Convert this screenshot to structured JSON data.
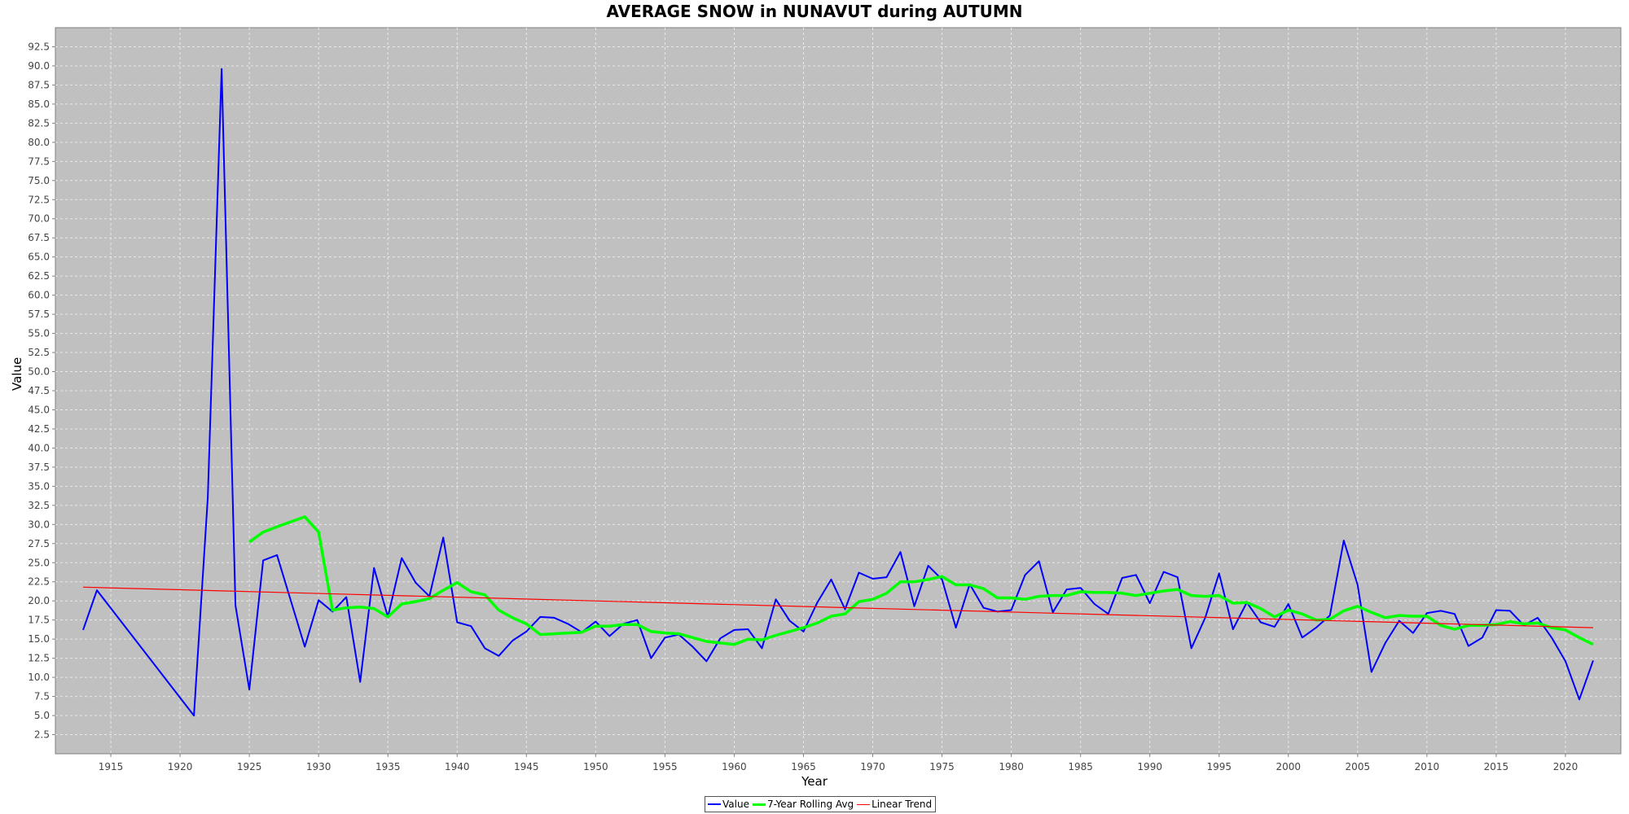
{
  "chart_data": {
    "type": "line",
    "title": "AVERAGE SNOW in NUNAVUT during AUTUMN",
    "xlabel": "Year",
    "ylabel": "Value",
    "xlim": [
      1911,
      2024
    ],
    "ylim": [
      0,
      95
    ],
    "xticks": [
      1915,
      1920,
      1925,
      1930,
      1935,
      1940,
      1945,
      1950,
      1955,
      1960,
      1965,
      1970,
      1975,
      1980,
      1985,
      1990,
      1995,
      2000,
      2005,
      2010,
      2015,
      2020
    ],
    "yticks": [
      2.5,
      5.0,
      7.5,
      10.0,
      12.5,
      15.0,
      17.5,
      20.0,
      22.5,
      25.0,
      27.5,
      30.0,
      32.5,
      35.0,
      37.5,
      40.0,
      42.5,
      45.0,
      47.5,
      50.0,
      52.5,
      55.0,
      57.5,
      60.0,
      62.5,
      65.0,
      67.5,
      70.0,
      72.5,
      75.0,
      77.5,
      80.0,
      82.5,
      85.0,
      87.5,
      90.0,
      92.5
    ],
    "grid": true,
    "legend_position": "bottom-center",
    "background_color": "#c0c0c0",
    "series": [
      {
        "name": "Value",
        "color": "#0000ff",
        "x": [
          1913,
          1914,
          1921,
          1922,
          1923,
          1924,
          1925,
          1926,
          1927,
          1929,
          1930,
          1931,
          1932,
          1933,
          1934,
          1935,
          1936,
          1937,
          1938,
          1939,
          1940,
          1941,
          1942,
          1943,
          1944,
          1945,
          1946,
          1947,
          1948,
          1949,
          1950,
          1951,
          1952,
          1953,
          1954,
          1955,
          1956,
          1957,
          1958,
          1959,
          1960,
          1961,
          1962,
          1963,
          1964,
          1965,
          1966,
          1967,
          1968,
          1969,
          1970,
          1971,
          1972,
          1973,
          1974,
          1975,
          1976,
          1977,
          1978,
          1979,
          1980,
          1981,
          1982,
          1983,
          1984,
          1985,
          1986,
          1987,
          1988,
          1989,
          1990,
          1991,
          1992,
          1993,
          1994,
          1995,
          1996,
          1997,
          1998,
          1999,
          2000,
          2001,
          2002,
          2003,
          2004,
          2005,
          2006,
          2007,
          2008,
          2009,
          2010,
          2011,
          2012,
          2013,
          2014,
          2015,
          2016,
          2017,
          2018,
          2019,
          2020,
          2021,
          2022
        ],
        "y": [
          16.2,
          21.4,
          5.0,
          33.5,
          89.6,
          19.4,
          8.4,
          25.3,
          26.0,
          14.0,
          20.1,
          18.6,
          20.5,
          9.4,
          24.3,
          17.9,
          25.6,
          22.4,
          20.6,
          28.3,
          17.2,
          16.7,
          13.8,
          12.8,
          14.8,
          16.0,
          17.9,
          17.8,
          17.0,
          15.9,
          17.3,
          15.4,
          17.0,
          17.5,
          12.5,
          15.2,
          15.6,
          14.0,
          12.1,
          15.1,
          16.2,
          16.3,
          13.8,
          20.2,
          17.4,
          16.0,
          19.8,
          22.8,
          18.9,
          23.7,
          22.9,
          23.1,
          26.4,
          19.3,
          24.6,
          22.8,
          16.5,
          22.2,
          19.1,
          18.6,
          18.8,
          23.4,
          25.2,
          18.5,
          21.5,
          21.7,
          19.6,
          18.3,
          23.0,
          23.4,
          19.7,
          23.8,
          23.1,
          13.8,
          17.8,
          23.6,
          16.3,
          19.8,
          17.2,
          16.6,
          19.6,
          15.2,
          16.5,
          18.1,
          27.9,
          22.1,
          10.7,
          14.5,
          17.4,
          15.8,
          18.4,
          18.7,
          18.3,
          14.1,
          15.2,
          18.8,
          18.7,
          16.8,
          17.8,
          15.2,
          12.1,
          7.1,
          12.2
        ]
      },
      {
        "name": "7-Year Rolling Avg",
        "color": "#00ff00",
        "x": [
          1925,
          1926,
          1927,
          1929,
          1930,
          1931,
          1932,
          1933,
          1934,
          1935,
          1936,
          1937,
          1938,
          1939,
          1940,
          1941,
          1942,
          1943,
          1944,
          1945,
          1946,
          1947,
          1948,
          1949,
          1950,
          1951,
          1952,
          1953,
          1954,
          1955,
          1956,
          1957,
          1958,
          1959,
          1960,
          1961,
          1962,
          1963,
          1964,
          1965,
          1966,
          1967,
          1968,
          1969,
          1970,
          1971,
          1972,
          1973,
          1974,
          1975,
          1976,
          1977,
          1978,
          1979,
          1980,
          1981,
          1982,
          1983,
          1984,
          1985,
          1986,
          1987,
          1988,
          1989,
          1990,
          1991,
          1992,
          1993,
          1994,
          1995,
          1996,
          1997,
          1998,
          1999,
          2000,
          2001,
          2002,
          2003,
          2004,
          2005,
          2006,
          2007,
          2008,
          2009,
          2010,
          2011,
          2012,
          2013,
          2014,
          2015,
          2016,
          2017,
          2018,
          2019,
          2020,
          2021,
          2022
        ],
        "y": [
          27.7,
          29.0,
          29.7,
          31.0,
          29.0,
          18.8,
          19.1,
          19.2,
          19.0,
          17.9,
          19.6,
          19.9,
          20.3,
          21.4,
          22.4,
          21.2,
          20.8,
          18.8,
          17.8,
          17.0,
          15.6,
          15.7,
          15.8,
          15.9,
          16.7,
          16.7,
          16.9,
          16.9,
          16.0,
          15.8,
          15.7,
          15.2,
          14.7,
          14.5,
          14.3,
          15.0,
          14.9,
          15.5,
          16.0,
          16.5,
          17.1,
          18.0,
          18.3,
          19.9,
          20.2,
          21.0,
          22.5,
          22.5,
          22.8,
          23.2,
          22.1,
          22.1,
          21.6,
          20.4,
          20.4,
          20.2,
          20.6,
          20.7,
          20.7,
          21.2,
          21.1,
          21.1,
          21.0,
          20.7,
          21.0,
          21.3,
          21.5,
          20.7,
          20.6,
          20.7,
          19.7,
          19.8,
          19.0,
          17.9,
          18.8,
          18.3,
          17.5,
          17.6,
          18.7,
          19.3,
          18.5,
          17.8,
          18.1,
          18.0,
          18.0,
          16.8,
          16.3,
          16.8,
          16.8,
          16.9,
          17.3,
          17.0,
          17.1,
          16.5,
          16.2,
          15.2,
          14.3
        ]
      },
      {
        "name": "Linear Trend",
        "color": "#ff0000",
        "x": [
          1913,
          2022
        ],
        "y": [
          21.8,
          16.5
        ]
      }
    ]
  }
}
